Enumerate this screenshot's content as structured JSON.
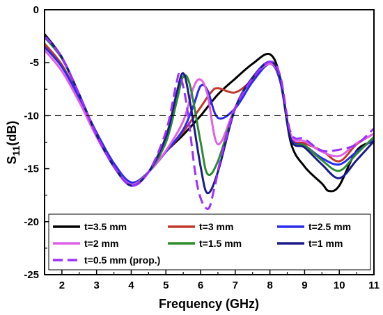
{
  "chart_data": {
    "type": "line",
    "xlabel": "Frequency (GHz)",
    "ylabel": {
      "main": "S",
      "sub": "11",
      "unit": "(dB)"
    },
    "xlim": [
      1.5,
      11
    ],
    "ylim": [
      -25,
      0
    ],
    "xticks": [
      2,
      3,
      4,
      5,
      6,
      7,
      8,
      9,
      10,
      11
    ],
    "yticks": [
      0,
      -5,
      -10,
      -15,
      -20,
      -25
    ],
    "grid": false,
    "reference_line": {
      "y": -10,
      "style": "dashed",
      "color": "#000000"
    },
    "legend_position": "bottom-left",
    "series": [
      {
        "name": "t=3.5 mm",
        "color": "#000000",
        "dash": "solid",
        "x": [
          1.5,
          2.0,
          2.5,
          3.0,
          3.5,
          4.0,
          4.5,
          5.0,
          5.5,
          6.0,
          6.5,
          7.0,
          7.5,
          8.0,
          8.3,
          8.6,
          9.0,
          9.5,
          9.7,
          10.0,
          10.5,
          11.0
        ],
        "y": [
          -2.3,
          -4.5,
          -8.0,
          -11.8,
          -14.8,
          -16.6,
          -15.3,
          -13.4,
          -11.8,
          -10.0,
          -8.0,
          -6.5,
          -5.1,
          -4.2,
          -6.5,
          -12.5,
          -14.8,
          -16.4,
          -17.1,
          -16.6,
          -13.3,
          -12.4
        ]
      },
      {
        "name": "t=3 mm",
        "color": "#c0392b",
        "dash": "solid",
        "x": [
          1.5,
          2.0,
          2.5,
          3.0,
          3.5,
          4.0,
          4.5,
          5.0,
          5.5,
          6.0,
          6.3,
          6.5,
          7.0,
          7.5,
          8.0,
          8.3,
          8.6,
          9.0,
          9.5,
          10.0,
          10.5,
          11.0
        ],
        "y": [
          -3.2,
          -5.2,
          -8.3,
          -11.6,
          -14.5,
          -16.3,
          -15.3,
          -13.4,
          -11.5,
          -9.2,
          -7.8,
          -7.4,
          -7.8,
          -6.6,
          -5.1,
          -6.8,
          -12.0,
          -12.6,
          -13.3,
          -14.3,
          -12.7,
          -11.7
        ]
      },
      {
        "name": "t=2.5 mm",
        "color": "#2a2aee",
        "dash": "solid",
        "x": [
          1.5,
          2.0,
          2.5,
          3.0,
          3.5,
          4.0,
          4.5,
          5.0,
          5.5,
          5.8,
          6.0,
          6.2,
          6.5,
          7.0,
          7.5,
          8.0,
          8.3,
          8.6,
          9.0,
          9.5,
          10.0,
          10.5,
          11.0
        ],
        "y": [
          -3.5,
          -5.4,
          -8.3,
          -11.6,
          -14.5,
          -16.3,
          -15.3,
          -13.4,
          -11.3,
          -9.0,
          -7.2,
          -7.6,
          -10.2,
          -9.3,
          -6.8,
          -5.1,
          -6.8,
          -12.1,
          -12.8,
          -14.0,
          -14.6,
          -13.4,
          -12.2
        ]
      },
      {
        "name": "t=2 mm",
        "color": "#e060e8",
        "dash": "solid",
        "x": [
          1.5,
          2.0,
          2.5,
          3.0,
          3.5,
          4.0,
          4.5,
          5.0,
          5.5,
          5.8,
          6.0,
          6.2,
          6.5,
          7.0,
          7.5,
          8.0,
          8.3,
          8.6,
          9.0,
          9.5,
          10.0,
          10.5,
          11.0
        ],
        "y": [
          -3.8,
          -5.8,
          -8.7,
          -12.0,
          -14.8,
          -16.5,
          -15.3,
          -13.3,
          -10.5,
          -7.3,
          -6.6,
          -8.0,
          -12.7,
          -9.2,
          -6.4,
          -5.1,
          -6.5,
          -11.8,
          -12.4,
          -13.4,
          -13.8,
          -12.6,
          -11.7
        ]
      },
      {
        "name": "t=1.5 mm",
        "color": "#2e8b2e",
        "dash": "solid",
        "x": [
          1.5,
          2.0,
          2.5,
          3.0,
          3.5,
          4.0,
          4.5,
          5.0,
          5.3,
          5.5,
          5.7,
          6.0,
          6.2,
          6.5,
          7.0,
          7.5,
          8.0,
          8.3,
          8.6,
          9.0,
          9.5,
          10.0,
          10.5,
          11.0
        ],
        "y": [
          -2.6,
          -4.6,
          -8.0,
          -11.8,
          -14.8,
          -16.6,
          -15.3,
          -12.5,
          -8.8,
          -6.3,
          -7.2,
          -12.5,
          -15.5,
          -14.3,
          -9.3,
          -6.4,
          -4.9,
          -6.5,
          -12.2,
          -12.8,
          -14.2,
          -15.2,
          -13.6,
          -12.0
        ]
      },
      {
        "name": "t=1 mm",
        "color": "#1a1a8c",
        "dash": "solid",
        "x": [
          1.5,
          2.0,
          2.5,
          3.0,
          3.5,
          4.0,
          4.5,
          5.0,
          5.3,
          5.5,
          5.7,
          6.0,
          6.2,
          6.5,
          7.0,
          7.5,
          8.0,
          8.3,
          8.6,
          9.0,
          9.5,
          10.0,
          10.5,
          11.0
        ],
        "y": [
          -2.4,
          -4.5,
          -8.0,
          -11.8,
          -14.8,
          -16.6,
          -15.3,
          -12.0,
          -8.0,
          -6.0,
          -8.8,
          -14.8,
          -17.3,
          -15.3,
          -9.3,
          -6.4,
          -4.9,
          -6.5,
          -12.2,
          -13.0,
          -14.6,
          -15.9,
          -14.2,
          -12.4
        ]
      },
      {
        "name": "t=0.5 mm (prop.)",
        "color": "#9b30ff",
        "dash": "dashed",
        "x": [
          1.5,
          2.0,
          2.5,
          3.0,
          3.5,
          4.0,
          4.5,
          5.0,
          5.3,
          5.4,
          5.6,
          5.9,
          6.2,
          6.4,
          6.6,
          7.0,
          7.5,
          8.0,
          8.3,
          8.6,
          9.0,
          9.5,
          10.0,
          10.5,
          11.0
        ],
        "y": [
          -2.5,
          -4.5,
          -8.0,
          -11.8,
          -14.8,
          -16.6,
          -15.3,
          -11.5,
          -7.0,
          -6.2,
          -9.0,
          -16.5,
          -18.8,
          -16.8,
          -13.8,
          -9.3,
          -6.5,
          -4.9,
          -6.3,
          -11.6,
          -12.2,
          -13.3,
          -13.2,
          -12.7,
          -11.2
        ]
      }
    ]
  }
}
